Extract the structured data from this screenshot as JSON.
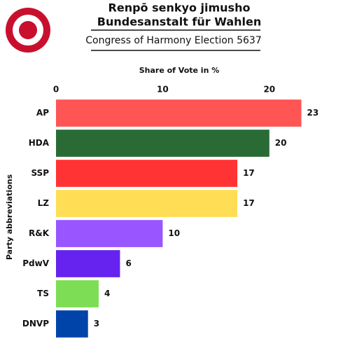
{
  "chart_data": {
    "type": "bar",
    "orientation": "horizontal",
    "title_lines": [
      "Renpō senkyo jimusho",
      "Bundesanstalt für Wahlen"
    ],
    "subtitle": "Congress of Harmony Election 5637",
    "x_label": "Share of Vote in %",
    "y_label": "Party abbreviations",
    "categories": [
      "AP",
      "HDA",
      "SSP",
      "LZ",
      "R&K",
      "PdwV",
      "TS",
      "DNVP"
    ],
    "values": [
      23,
      20,
      17,
      17,
      10,
      6,
      4,
      3
    ],
    "colors": [
      "#ff5555",
      "#2a6b35",
      "#ff3333",
      "#ffdd55",
      "#9955ff",
      "#6622ee",
      "#7ddd55",
      "#0044aa"
    ],
    "xlim": [
      0,
      25
    ],
    "xticks": [
      0,
      10,
      20
    ]
  }
}
